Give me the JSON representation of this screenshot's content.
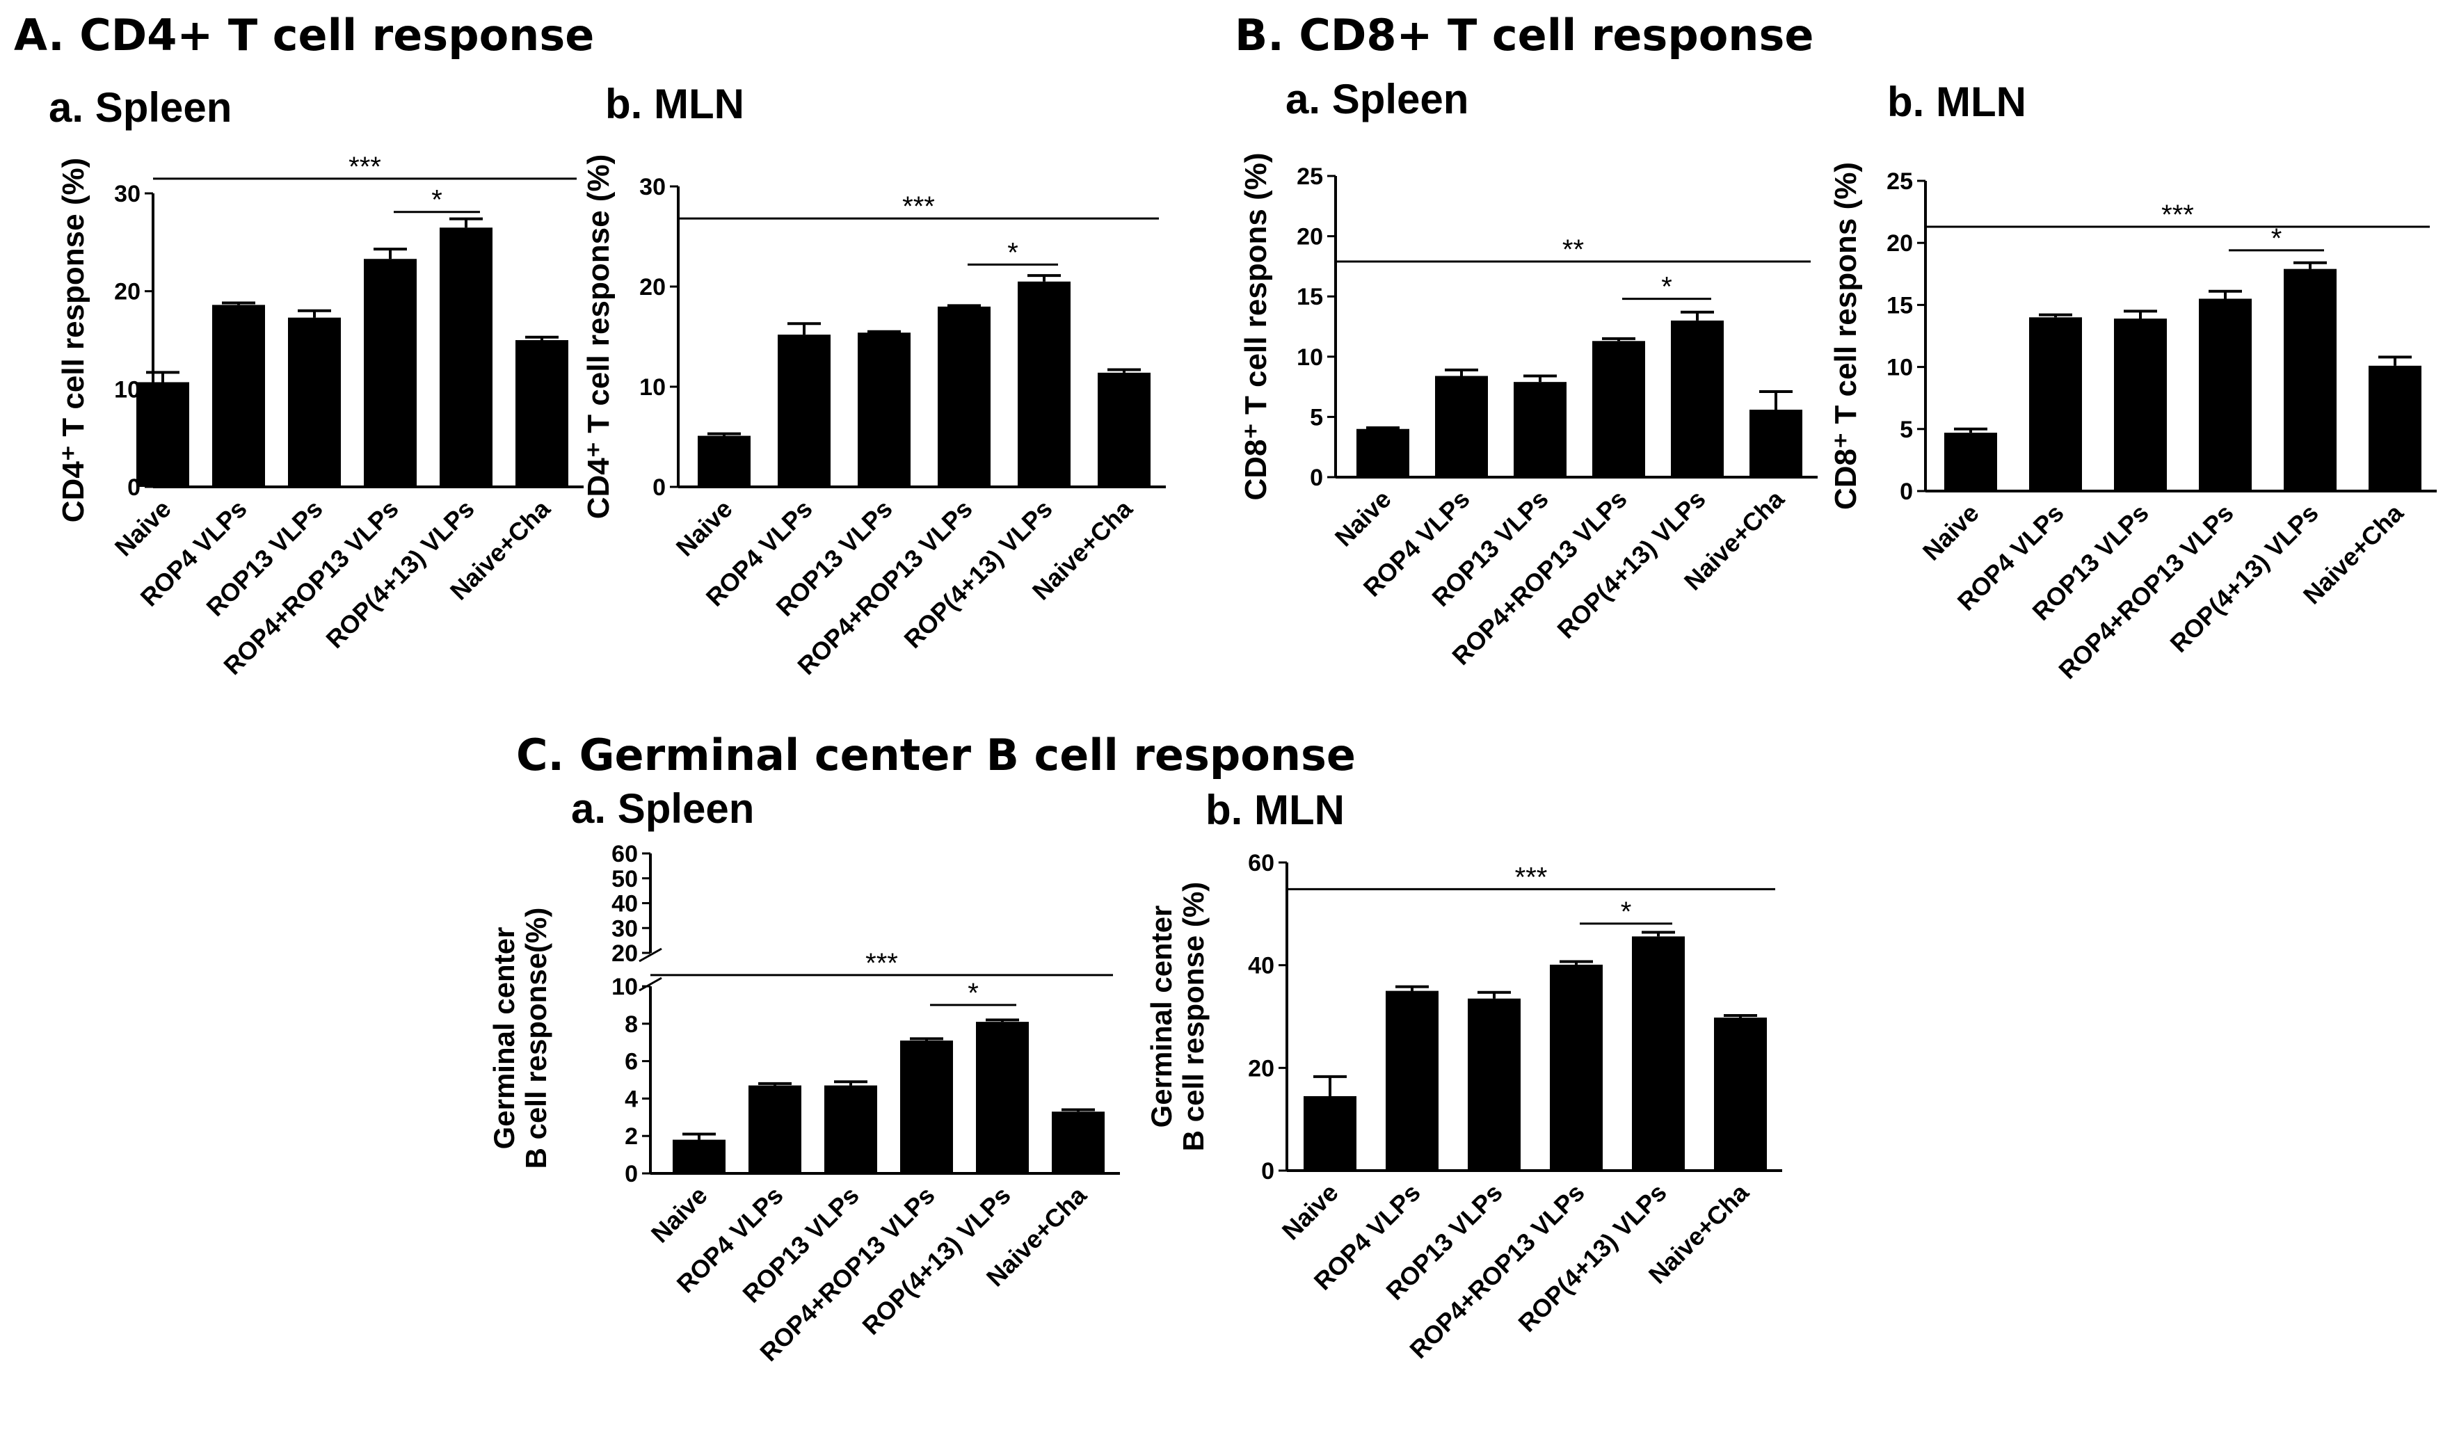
{
  "figure": {
    "section_titles": {
      "A": "A. CD4+ T cell response",
      "B": "B. CD8+ T cell response",
      "C": "C. Germinal center B cell response"
    }
  },
  "colors": {
    "bar": "#000000",
    "axis": "#000000",
    "background": "#ffffff"
  },
  "chart_data": [
    {
      "id": "A-a",
      "type": "bar",
      "panel_title": "a. Spleen",
      "ylabel": "CD4⁺ T cell response (%)",
      "categories": [
        "Naive",
        "ROP4 VLPs",
        "ROP13 VLPs",
        "ROP4+ROP13 VLPs",
        "ROP(4+13) VLPs",
        "Naive+Cha"
      ],
      "values": [
        10.7,
        18.6,
        17.3,
        23.3,
        26.5,
        15.0
      ],
      "errors": [
        1.0,
        0.2,
        0.7,
        1.0,
        0.9,
        0.3
      ],
      "ylim": [
        0,
        30
      ],
      "yticks": [
        0,
        10,
        20,
        30
      ],
      "significance": [
        {
          "label": "***",
          "from": 0,
          "to": 5,
          "y": 31.5
        },
        {
          "label": "*",
          "from": 3,
          "to": 4,
          "y": 28.1
        }
      ]
    },
    {
      "id": "A-b",
      "type": "bar",
      "panel_title": "b. MLN",
      "ylabel": "CD4⁺ T cell response (%)",
      "categories": [
        "Naive",
        "ROP4 VLPs",
        "ROP13 VLPs",
        "ROP4+ROP13 VLPs",
        "ROP(4+13) VLPs",
        "Naive+Cha"
      ],
      "values": [
        5.1,
        15.2,
        15.4,
        18.0,
        20.5,
        11.4
      ],
      "errors": [
        0.2,
        1.1,
        0.1,
        0.1,
        0.6,
        0.3
      ],
      "ylim": [
        0,
        30
      ],
      "yticks": [
        0,
        10,
        20,
        30
      ],
      "significance": [
        {
          "label": "***",
          "from": 0,
          "to": 5,
          "y": 26.8
        },
        {
          "label": "*",
          "from": 3,
          "to": 4,
          "y": 22.2
        }
      ]
    },
    {
      "id": "B-a",
      "type": "bar",
      "panel_title": "a. Spleen",
      "ylabel": "CD8⁺ T cell respons (%)",
      "categories": [
        "Naive",
        "ROP4 VLPs",
        "ROP13 VLPs",
        "ROP4+ROP13 VLPs",
        "ROP(4+13) VLPs",
        "Naive+Cha"
      ],
      "values": [
        4.0,
        8.4,
        7.9,
        11.3,
        13.0,
        5.6
      ],
      "errors": [
        0.1,
        0.5,
        0.5,
        0.2,
        0.7,
        1.5
      ],
      "ylim": [
        0,
        25
      ],
      "yticks": [
        0,
        5,
        10,
        15,
        20,
        25
      ],
      "significance": [
        {
          "label": "**",
          "from": 0,
          "to": 5,
          "y": 17.9
        },
        {
          "label": "*",
          "from": 3,
          "to": 4,
          "y": 14.8
        }
      ]
    },
    {
      "id": "B-b",
      "type": "bar",
      "panel_title": "b. MLN",
      "ylabel": "CD8⁺ T cell respons (%)",
      "categories": [
        "Naive",
        "ROP4 VLPs",
        "ROP13 VLPs",
        "ROP4+ROP13 VLPs",
        "ROP(4+13) VLPs",
        "Naive+Cha"
      ],
      "values": [
        4.7,
        14.0,
        13.9,
        15.5,
        17.9,
        10.1
      ],
      "errors": [
        0.3,
        0.2,
        0.6,
        0.6,
        0.5,
        0.7
      ],
      "ylim": [
        0,
        25
      ],
      "yticks": [
        0,
        5,
        10,
        15,
        20,
        25
      ],
      "significance": [
        {
          "label": "***",
          "from": 0,
          "to": 5,
          "y": 21.3
        },
        {
          "label": "*",
          "from": 3,
          "to": 4,
          "y": 19.4
        }
      ]
    },
    {
      "id": "C-a",
      "type": "bar",
      "panel_title": "a. Spleen",
      "ylabel_lines": [
        "Germinal center",
        "B cell response(%)"
      ],
      "categories": [
        "Naive",
        "ROP4 VLPs",
        "ROP13 VLPs",
        "ROP4+ROP13 VLPs",
        "ROP(4+13) VLPs",
        "Naive+Cha"
      ],
      "values": [
        1.8,
        4.7,
        4.7,
        7.1,
        8.1,
        3.3
      ],
      "errors": [
        0.3,
        0.1,
        0.2,
        0.1,
        0.1,
        0.1
      ],
      "ylim": [
        0,
        10
      ],
      "yticks": [
        0,
        2,
        4,
        6,
        8,
        10
      ],
      "broken_axis": {
        "upper_range": [
          20,
          60
        ],
        "upper_ticks": [
          20,
          30,
          40,
          50,
          60
        ]
      },
      "significance": [
        {
          "label": "***",
          "from": 0,
          "to": 5,
          "y": 10.6
        },
        {
          "label": "*",
          "from": 3,
          "to": 4,
          "y": 9.0
        }
      ]
    },
    {
      "id": "C-b",
      "type": "bar",
      "panel_title": "b. MLN",
      "ylabel_lines": [
        "Germinal center",
        "B cell response (%)"
      ],
      "categories": [
        "Naive",
        "ROP4 VLPs",
        "ROP13 VLPs",
        "ROP4+ROP13 VLPs",
        "ROP(4+13) VLPs",
        "Naive+Cha"
      ],
      "values": [
        14.5,
        35.0,
        33.5,
        40.1,
        45.6,
        29.8
      ],
      "errors": [
        3.8,
        0.8,
        1.2,
        0.6,
        0.8,
        0.4
      ],
      "ylim": [
        0,
        60
      ],
      "yticks": [
        0,
        20,
        40,
        60
      ],
      "significance": [
        {
          "label": "***",
          "from": 0,
          "to": 5,
          "y": 54.8
        },
        {
          "label": "*",
          "from": 3,
          "to": 4,
          "y": 48.1
        }
      ]
    }
  ]
}
